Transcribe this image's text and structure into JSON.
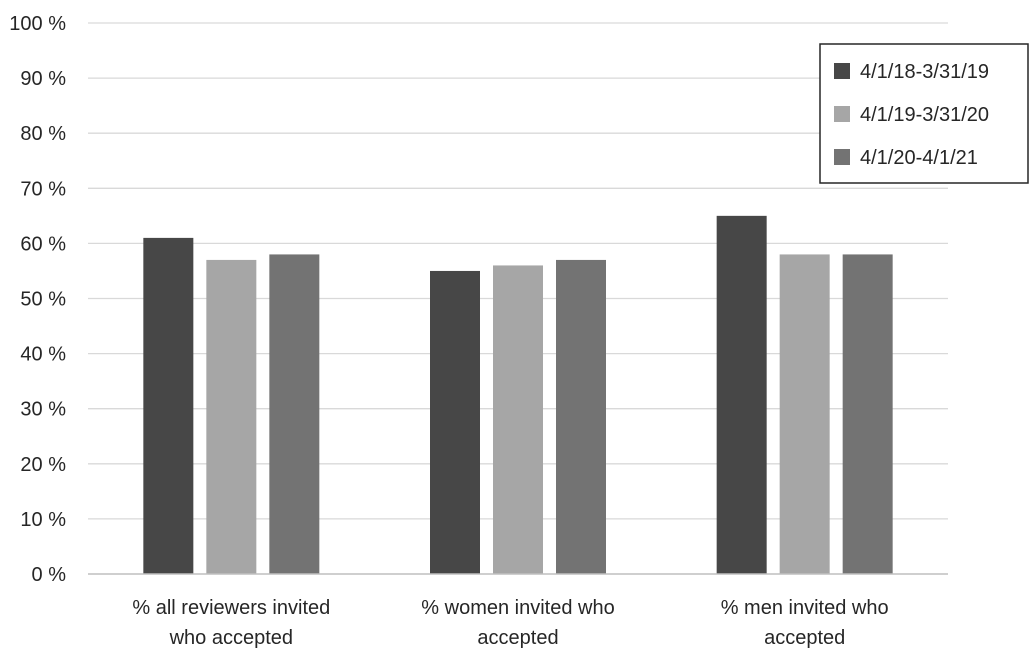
{
  "chart_data": {
    "type": "bar",
    "title": "",
    "xlabel": "",
    "ylabel": "",
    "ylim": [
      0,
      100
    ],
    "yticks": [
      "0 %",
      "10 %",
      "20 %",
      "30 %",
      "40 %",
      "50 %",
      "60 %",
      "70 %",
      "80 %",
      "90 %",
      "100 %"
    ],
    "categories": [
      [
        "% all reviewers invited",
        "who accepted"
      ],
      [
        "% women invited who",
        "accepted"
      ],
      [
        "% men invited who",
        "accepted"
      ]
    ],
    "series": [
      {
        "name": "4/1/18-3/31/19",
        "color": "#474747",
        "values": [
          61,
          55,
          65
        ]
      },
      {
        "name": "4/1/19-3/31/20",
        "color": "#a6a6a6",
        "values": [
          57,
          56,
          58
        ]
      },
      {
        "name": "4/1/20-4/1/21",
        "color": "#737373",
        "values": [
          58,
          57,
          58
        ]
      }
    ],
    "grid": true,
    "legend_position": "top-right"
  }
}
